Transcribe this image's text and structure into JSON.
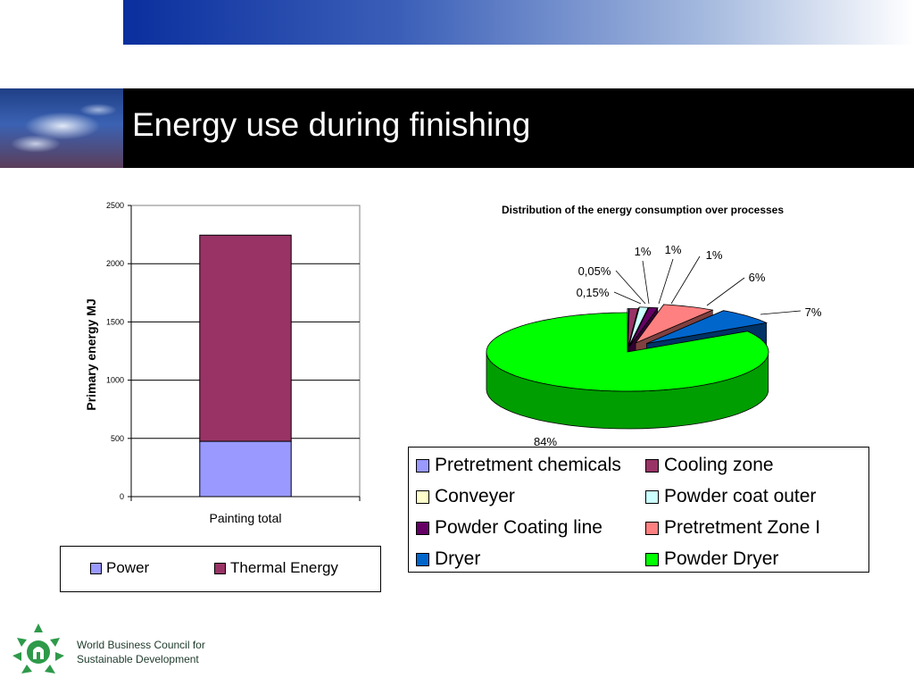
{
  "slide": {
    "title": "Energy use during finishing",
    "org_line1": "World Business Council for",
    "org_line2": "Sustainable Development"
  },
  "colors": {
    "title_bar": "#000000",
    "logo_green": "#2e9a4a"
  },
  "chart_data": [
    {
      "type": "bar",
      "stacked": true,
      "categories": [
        "Painting total"
      ],
      "series": [
        {
          "name": "Power",
          "values": [
            475
          ],
          "color": "#9999ff"
        },
        {
          "name": "Thermal Energy",
          "values": [
            1770
          ],
          "color": "#993366"
        }
      ],
      "xlabel": "",
      "ylabel": "Primary energy MJ",
      "ylim": [
        0,
        2500
      ],
      "yticks": [
        0,
        500,
        1000,
        1500,
        2000,
        2500
      ],
      "grid": true,
      "legend_position": "bottom"
    },
    {
      "type": "pie",
      "subtype": "3d-exploded",
      "title": "Distribution of the energy consumption over processes",
      "series": [
        {
          "name": "Pretretment chemicals",
          "value": 0.15,
          "label": "0,15%",
          "color": "#9999ff"
        },
        {
          "name": "Cooling zone",
          "value": 1,
          "label": "1%",
          "color": "#993366"
        },
        {
          "name": "Conveyer",
          "value": 0.05,
          "label": "0,05%",
          "color": "#ffffcc"
        },
        {
          "name": "Powder coat outer",
          "value": 1,
          "label": "1%",
          "color": "#ccffff"
        },
        {
          "name": "Powder Coating line",
          "value": 1,
          "label": "1%",
          "color": "#660066"
        },
        {
          "name": "Pretretment Zone I",
          "value": 6,
          "label": "6%",
          "color": "#ff8080"
        },
        {
          "name": "Dryer",
          "value": 7,
          "label": "7%",
          "color": "#0066cc"
        },
        {
          "name": "Powder Dryer",
          "value": 84,
          "label": "84%",
          "color": "#00ff00"
        }
      ],
      "legend_position": "bottom"
    }
  ]
}
